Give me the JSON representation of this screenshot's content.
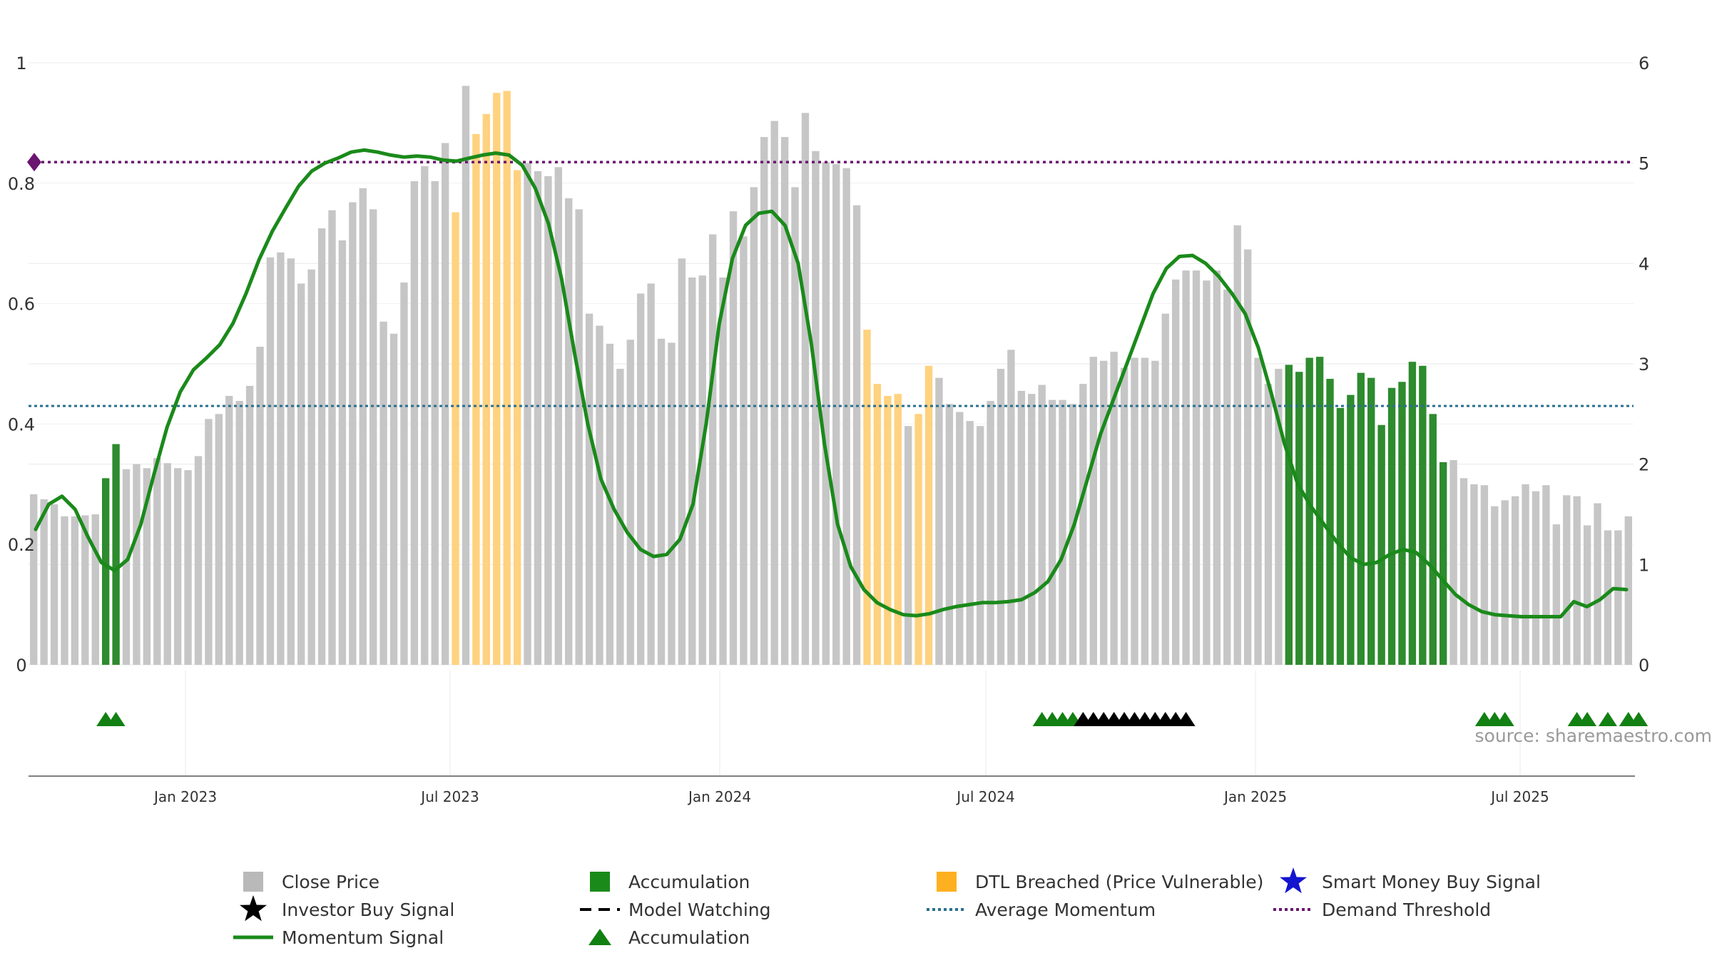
{
  "chart_data": {
    "type": "bar",
    "source_text": "source: sharemaestro.com",
    "left_axis": {
      "ticks": [
        "0",
        "0.2",
        "0.4",
        "0.6",
        "0.8",
        "1"
      ],
      "range": [
        0,
        1.0
      ]
    },
    "right_axis": {
      "ticks": [
        "0",
        "1",
        "2",
        "3",
        "4",
        "5",
        "6"
      ],
      "range": [
        0,
        6
      ]
    },
    "x_ticks": [
      "Jan 2023",
      "Jul 2023",
      "Jan 2024",
      "Jul 2024",
      "Jan 2025",
      "Jul 2025"
    ],
    "demand_threshold": 0.835,
    "average_momentum": 0.43,
    "colors": {
      "close": "#c6c6c6",
      "accumulation": "#2e8b2e",
      "dtl": "#ffd27f",
      "momentum": "#1a8a1a",
      "average": "#2a6f8f",
      "demand": "#6b1470",
      "triangle_green": "#128012",
      "triangle_black": "#000000",
      "star_blue": "#1414d0"
    },
    "bar_types": "CCCCCCCAACCCCCCCCCCCCCCCCCCCCCCCCCCCCCCCCDCDDDDDCCCCCCCCCCCCCCCCCCCCCCCCCCCCCCCCCDDDDCDDCCCCCCCCCCCCCCCCCCCCCCCCCCCCCCCCCCAAAAAAAAAAAAAAAACCCCCCCCCCCCCCCCCCCCCCCCCCCCCCCCCCCCCCCCCCCCCAAACCCCCCCCCCAAAAAAAC",
    "close_values": [
      1.7,
      1.65,
      1.6,
      1.48,
      1.48,
      1.49,
      1.5,
      1.86,
      2.2,
      1.95,
      2.0,
      1.96,
      2.06,
      2.01,
      1.96,
      1.94,
      2.08,
      2.45,
      2.5,
      2.68,
      2.63,
      2.78,
      3.17,
      4.06,
      4.11,
      4.05,
      3.8,
      3.94,
      4.35,
      4.53,
      4.23,
      4.61,
      4.75,
      4.54,
      3.42,
      3.3,
      3.81,
      4.82,
      4.97,
      4.82,
      5.2,
      4.51,
      5.77,
      5.29,
      5.49,
      5.7,
      5.72,
      4.93,
      5.0,
      4.92,
      4.87,
      4.96,
      4.65,
      4.54,
      3.5,
      3.38,
      3.2,
      2.95,
      3.24,
      3.7,
      3.8,
      3.25,
      3.21,
      4.05,
      3.86,
      3.88,
      4.29,
      3.86,
      4.52,
      4.27,
      4.76,
      5.26,
      5.42,
      5.26,
      4.76,
      5.5,
      5.12,
      5.01,
      4.99,
      4.95,
      4.58,
      3.34,
      2.8,
      2.68,
      2.7,
      2.38,
      2.5,
      2.98,
      2.86,
      2.6,
      2.52,
      2.43,
      2.38,
      2.63,
      2.95,
      3.14,
      2.73,
      2.7,
      2.79,
      2.64,
      2.64,
      2.6,
      2.8,
      3.07,
      3.03,
      3.12,
      2.96,
      3.06,
      3.06,
      3.03,
      3.5,
      3.84,
      3.93,
      3.93,
      3.83,
      3.93,
      3.74,
      4.38,
      4.14,
      3.06,
      2.8,
      2.95,
      2.99,
      2.92,
      3.06,
      3.07,
      2.85,
      2.56,
      2.69,
      2.91,
      2.86,
      2.39,
      2.76,
      2.82,
      3.02,
      2.98,
      2.5,
      2.02,
      2.04,
      1.86,
      1.8,
      1.79,
      1.58,
      1.64,
      1.68,
      1.8,
      1.73,
      1.79,
      1.4,
      1.69,
      1.68,
      1.39,
      1.61,
      1.34,
      1.34,
      1.48
    ],
    "momentum_values": [
      1.35,
      1.6,
      1.68,
      1.55,
      1.27,
      1.02,
      0.94,
      1.05,
      1.4,
      1.9,
      2.37,
      2.72,
      2.94,
      3.06,
      3.19,
      3.4,
      3.7,
      4.04,
      4.32,
      4.55,
      4.77,
      4.92,
      5.0,
      5.05,
      5.11,
      5.13,
      5.11,
      5.08,
      5.06,
      5.07,
      5.06,
      5.03,
      5.02,
      5.05,
      5.08,
      5.1,
      5.08,
      4.98,
      4.75,
      4.4,
      3.85,
      3.1,
      2.4,
      1.85,
      1.55,
      1.32,
      1.15,
      1.08,
      1.1,
      1.25,
      1.6,
      2.4,
      3.4,
      4.05,
      4.38,
      4.5,
      4.52,
      4.38,
      4.0,
      3.2,
      2.2,
      1.4,
      0.98,
      0.75,
      0.62,
      0.55,
      0.5,
      0.49,
      0.51,
      0.55,
      0.58,
      0.6,
      0.62,
      0.62,
      0.63,
      0.65,
      0.72,
      0.83,
      1.05,
      1.4,
      1.85,
      2.3,
      2.65,
      3.0,
      3.35,
      3.7,
      3.95,
      4.07,
      4.08,
      4.0,
      3.87,
      3.7,
      3.5,
      3.16,
      2.7,
      2.2,
      1.8,
      1.58,
      1.4,
      1.22,
      1.07,
      1.0,
      1.02,
      1.1,
      1.15,
      1.12,
      1.0,
      0.85,
      0.7,
      0.6,
      0.53,
      0.5,
      0.49,
      0.48,
      0.48,
      0.48,
      0.48,
      0.63,
      0.58,
      0.65,
      0.76,
      0.75
    ],
    "triangles": [
      {
        "bar": 7,
        "color": "green"
      },
      {
        "bar": 8,
        "color": "green"
      },
      {
        "bar": 98,
        "color": "green"
      },
      {
        "bar": 99,
        "color": "green"
      },
      {
        "bar": 100,
        "color": "green"
      },
      {
        "bar": 101,
        "color": "green"
      },
      {
        "bar": 102,
        "color": "black"
      },
      {
        "bar": 103,
        "color": "black"
      },
      {
        "bar": 104,
        "color": "black"
      },
      {
        "bar": 105,
        "color": "black"
      },
      {
        "bar": 106,
        "color": "black"
      },
      {
        "bar": 107,
        "color": "black"
      },
      {
        "bar": 108,
        "color": "black"
      },
      {
        "bar": 109,
        "color": "black"
      },
      {
        "bar": 110,
        "color": "black"
      },
      {
        "bar": 111,
        "color": "black"
      },
      {
        "bar": 112,
        "color": "black"
      },
      {
        "bar": 141,
        "color": "green"
      },
      {
        "bar": 142,
        "color": "green"
      },
      {
        "bar": 143,
        "color": "green"
      },
      {
        "bar": 150,
        "color": "green"
      },
      {
        "bar": 151,
        "color": "green"
      },
      {
        "bar": 153,
        "color": "green"
      },
      {
        "bar": 155,
        "color": "green"
      },
      {
        "bar": 156,
        "color": "green"
      }
    ],
    "legend": [
      {
        "label": "Close Price",
        "symbol": "square",
        "color": "#b9b9b9"
      },
      {
        "label": "Accumulation",
        "symbol": "square",
        "color": "#1a8a1a"
      },
      {
        "label": "DTL Breached (Price Vulnerable)",
        "symbol": "square",
        "color": "#ffb020"
      },
      {
        "label": "Smart Money Buy Signal",
        "symbol": "star",
        "color": "#1414d0"
      },
      {
        "label": "Investor Buy Signal",
        "symbol": "star",
        "color": "#000000"
      },
      {
        "label": "Model Watching",
        "symbol": "dash",
        "color": "#000000"
      },
      {
        "label": "Average Momentum",
        "symbol": "dotted",
        "color": "#2a6f8f"
      },
      {
        "label": "Demand Threshold",
        "symbol": "dotted",
        "color": "#6b1470"
      },
      {
        "label": "Momentum Signal",
        "symbol": "line",
        "color": "#1a8a1a"
      },
      {
        "label": "Accumulation",
        "symbol": "triangle",
        "color": "#128012"
      }
    ]
  }
}
